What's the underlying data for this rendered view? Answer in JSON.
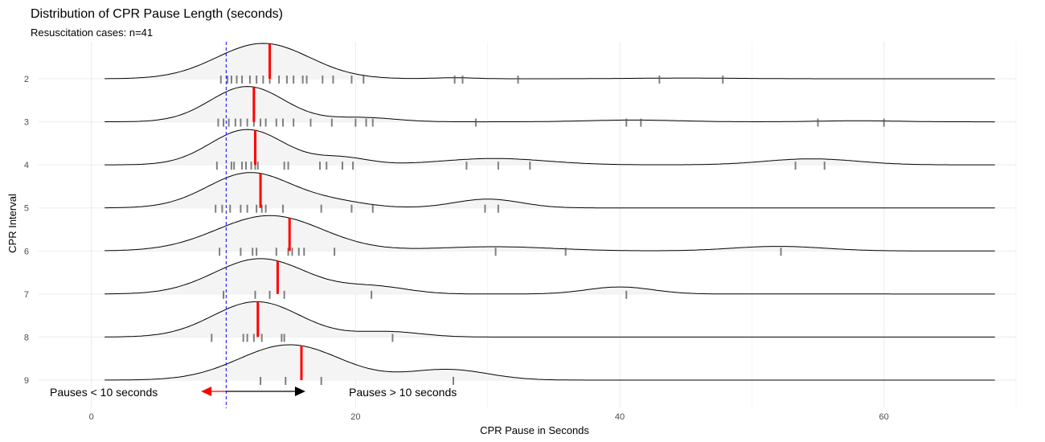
{
  "chart_data": {
    "type": "ridgeline",
    "title": "Distribution of CPR Pause Length (seconds)",
    "subtitle": "Resuscitation cases: n=41",
    "xlabel": "CPR Pause in Seconds",
    "ylabel": "CPR Interval",
    "xlim": [
      -4,
      70
    ],
    "x_ticks": [
      0,
      20,
      40,
      60
    ],
    "density_range": [
      1,
      68.5
    ],
    "grid": true,
    "reference_line": {
      "x": 10.2,
      "style": "dashed",
      "color": "#0000ff"
    },
    "colors": {
      "density_fill": "#f4f4f4",
      "density_line": "#000000",
      "median": "#ff0000",
      "rug": "#555555",
      "grid": "#ebebeb"
    },
    "series": [
      {
        "name": "2",
        "median": 13.5,
        "components": [
          {
            "m": 13,
            "s": 3.5,
            "w": 1.0
          },
          {
            "m": 27.5,
            "s": 1.5,
            "w": 0.03
          },
          {
            "m": 45,
            "s": 4,
            "w": 0.02
          }
        ],
        "rug": [
          9.8,
          10.3,
          10.6,
          11.0,
          11.4,
          12.0,
          12.5,
          13.0,
          13.5,
          14.2,
          14.8,
          15.3,
          16.0,
          16.3,
          17.5,
          18.3,
          19.7,
          20.6,
          27.5,
          28.1,
          32.3,
          43.0,
          47.8
        ]
      },
      {
        "name": "3",
        "median": 12.3,
        "components": [
          {
            "m": 11.8,
            "s": 2.8,
            "w": 1.0
          },
          {
            "m": 20.5,
            "s": 2.5,
            "w": 0.12
          },
          {
            "m": 41,
            "s": 3.5,
            "w": 0.05
          },
          {
            "m": 58,
            "s": 3,
            "w": 0.03
          }
        ],
        "rug": [
          9.6,
          10.0,
          10.4,
          10.9,
          11.3,
          11.8,
          12.3,
          12.8,
          13.2,
          14.0,
          14.5,
          15.3,
          16.6,
          18.2,
          20.0,
          20.8,
          21.3,
          29.1,
          40.5,
          41.6,
          55.0,
          60.0
        ]
      },
      {
        "name": "4",
        "median": 12.4,
        "components": [
          {
            "m": 11.8,
            "s": 2.8,
            "w": 1.0
          },
          {
            "m": 19,
            "s": 2,
            "w": 0.2
          },
          {
            "m": 30.5,
            "s": 4,
            "w": 0.18
          },
          {
            "m": 54.5,
            "s": 3.5,
            "w": 0.17
          }
        ],
        "rug": [
          9.5,
          10.6,
          10.8,
          11.4,
          11.7,
          12.1,
          12.4,
          12.6,
          14.6,
          14.9,
          17.3,
          17.8,
          19.0,
          19.8,
          28.4,
          30.8,
          33.2,
          53.3,
          55.5
        ]
      },
      {
        "name": "5",
        "median": 12.8,
        "components": [
          {
            "m": 12,
            "s": 3.2,
            "w": 1.0
          },
          {
            "m": 18.5,
            "s": 2.5,
            "w": 0.15
          },
          {
            "m": 30,
            "s": 2.5,
            "w": 0.25
          }
        ],
        "rug": [
          9.4,
          9.9,
          10.5,
          11.3,
          11.8,
          12.5,
          12.9,
          13.2,
          14.5,
          17.4,
          19.7,
          21.3,
          29.8,
          30.8
        ]
      },
      {
        "name": "6",
        "median": 15.0,
        "components": [
          {
            "m": 13.5,
            "s": 4,
            "w": 1.0
          },
          {
            "m": 30.5,
            "s": 4.5,
            "w": 0.12
          },
          {
            "m": 52,
            "s": 3.5,
            "w": 0.13
          }
        ],
        "rug": [
          9.7,
          11.3,
          12.2,
          12.5,
          14.0,
          14.9,
          15.2,
          15.7,
          16.1,
          18.4,
          30.6,
          35.9,
          52.2
        ]
      },
      {
        "name": "7",
        "median": 14.1,
        "components": [
          {
            "m": 12.8,
            "s": 3.5,
            "w": 1.0
          },
          {
            "m": 21.5,
            "s": 2.5,
            "w": 0.2
          },
          {
            "m": 40,
            "s": 2.5,
            "w": 0.2
          }
        ],
        "rug": [
          10.0,
          12.4,
          13.5,
          14.6,
          21.2,
          40.5
        ]
      },
      {
        "name": "8",
        "median": 12.6,
        "components": [
          {
            "m": 12.5,
            "s": 3.3,
            "w": 1.0
          },
          {
            "m": 22.5,
            "s": 2.5,
            "w": 0.15
          }
        ],
        "rug": [
          9.1,
          11.5,
          11.8,
          12.3,
          12.9,
          14.4,
          14.6,
          22.8
        ]
      },
      {
        "name": "9",
        "median": 15.9,
        "components": [
          {
            "m": 15,
            "s": 3.8,
            "w": 1.0
          },
          {
            "m": 27,
            "s": 3,
            "w": 0.3
          }
        ],
        "rug": [
          12.8,
          14.7,
          17.4,
          27.4
        ]
      }
    ],
    "annotations": {
      "left_label": "Pauses < 10 seconds",
      "right_label": "Pauses > 10 seconds",
      "left_arrow": {
        "from": 10.2,
        "to": 8.3,
        "color": "#ff0000"
      },
      "right_arrow": {
        "from": 10.2,
        "to": 16.2,
        "color": "#000000"
      }
    }
  }
}
